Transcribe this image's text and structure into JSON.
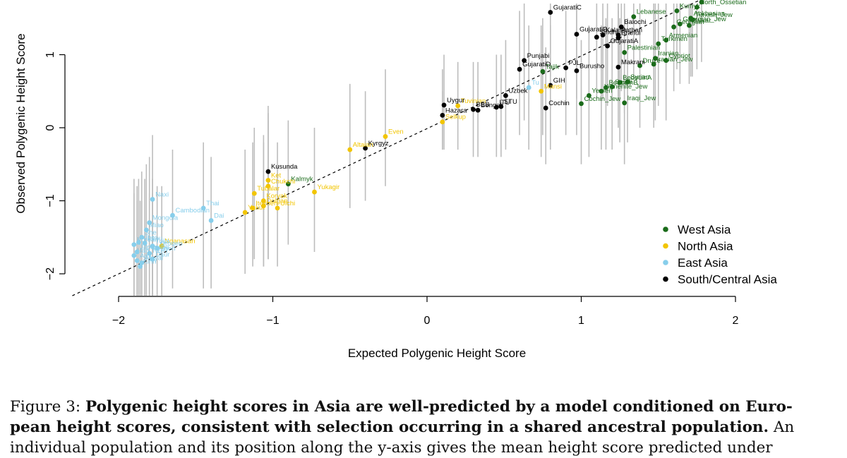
{
  "chart_data": {
    "type": "scatter",
    "xlabel": "Expected Polygenic Height Score",
    "ylabel": "Observed Polygenic Height Score",
    "xlim": [
      -2.2,
      2
    ],
    "ylim": [
      -2.3,
      1.75
    ],
    "x_ticks": [
      -2,
      -1,
      0,
      1,
      2
    ],
    "x_tick_labels": [
      "−2",
      "−1",
      "0",
      "1",
      "2"
    ],
    "y_ticks": [
      -2,
      -1,
      0,
      1
    ],
    "y_tick_labels": [
      "−2",
      "−1",
      "0",
      "1"
    ],
    "reference_line": "y = x (dashed)",
    "grid": false,
    "legend_position": "bottom-right",
    "colors": {
      "West Asia": "#1a6b1a",
      "North Asia": "#f2c500",
      "East Asia": "#87ceeb",
      "South/Central Asia": "#000000"
    },
    "legend": [
      "West Asia",
      "North Asia",
      "East Asia",
      "South/Central Asia"
    ],
    "points": [
      {
        "label": "Kalmyk",
        "group": "West Asia",
        "x": -0.9,
        "y": -0.77,
        "lo": -1.6,
        "hi": 0.1
      },
      {
        "label": "Cochin_Jew",
        "group": "West Asia",
        "x": 1.0,
        "y": 0.33,
        "lo": -0.5,
        "hi": 1.2
      },
      {
        "label": "Yemen",
        "group": "West Asia",
        "x": 1.05,
        "y": 0.44,
        "lo": -0.4,
        "hi": 1.4
      },
      {
        "label": "Yemenite_Jew",
        "group": "West Asia",
        "x": 1.13,
        "y": 0.5,
        "lo": -0.3,
        "hi": 1.4
      },
      {
        "label": "BedouinB",
        "group": "West Asia",
        "x": 1.16,
        "y": 0.55,
        "lo": -0.3,
        "hi": 1.5
      },
      {
        "label": "Saudi",
        "group": "West Asia",
        "x": 1.2,
        "y": 0.56,
        "lo": -0.3,
        "hi": 1.5
      },
      {
        "label": "BedouinA",
        "group": "West Asia",
        "x": 1.25,
        "y": 0.62,
        "lo": -0.2,
        "hi": 1.5
      },
      {
        "label": "Syrian",
        "group": "West Asia",
        "x": 1.3,
        "y": 0.63,
        "lo": -0.2,
        "hi": 1.5
      },
      {
        "label": "Iraqi_Jew",
        "group": "West Asia",
        "x": 1.28,
        "y": 0.34,
        "lo": -0.5,
        "hi": 1.3
      },
      {
        "label": "Druze",
        "group": "West Asia",
        "x": 1.38,
        "y": 0.85,
        "lo": 0.0,
        "hi": 1.7
      },
      {
        "label": "Iranian_Jew",
        "group": "West Asia",
        "x": 1.47,
        "y": 0.87,
        "lo": 0.0,
        "hi": 1.7
      },
      {
        "label": "Iranian",
        "group": "West Asia",
        "x": 1.48,
        "y": 0.95,
        "lo": 0.1,
        "hi": 1.7
      },
      {
        "label": "Cypriot",
        "group": "West Asia",
        "x": 1.55,
        "y": 0.92,
        "lo": 0.1,
        "hi": 1.7
      },
      {
        "label": "Palestinian",
        "group": "West Asia",
        "x": 1.28,
        "y": 1.03,
        "lo": 0.2,
        "hi": 1.7
      },
      {
        "label": "Turkmen",
        "group": "West Asia",
        "x": 1.5,
        "y": 1.15,
        "lo": 0.3,
        "hi": 1.7
      },
      {
        "label": "Armenian",
        "group": "West Asia",
        "x": 1.55,
        "y": 1.2,
        "lo": 0.4,
        "hi": 1.7
      },
      {
        "label": "Georgian",
        "group": "West Asia",
        "x": 1.6,
        "y": 1.38,
        "lo": 0.5,
        "hi": 1.7
      },
      {
        "label": "Georgian_Jew",
        "group": "West Asia",
        "x": 1.64,
        "y": 1.42,
        "lo": 0.6,
        "hi": 1.7
      },
      {
        "label": "Balkar",
        "group": "West Asia",
        "x": 1.7,
        "y": 1.4,
        "lo": 0.6,
        "hi": 1.7
      },
      {
        "label": "Abkhasian",
        "group": "West Asia",
        "x": 1.71,
        "y": 1.5,
        "lo": 0.7,
        "hi": 1.7
      },
      {
        "label": "Turkish_Jew",
        "group": "West Asia",
        "x": 1.72,
        "y": 1.48,
        "lo": 0.7,
        "hi": 1.7
      },
      {
        "label": "Lebanese",
        "group": "West Asia",
        "x": 1.34,
        "y": 1.52,
        "lo": 0.7,
        "hi": 1.7
      },
      {
        "label": "Kumyk",
        "group": "West Asia",
        "x": 1.62,
        "y": 1.6,
        "lo": 0.8,
        "hi": 1.7
      },
      {
        "label": "North_Ossetian",
        "group": "West Asia",
        "x": 1.75,
        "y": 1.65,
        "lo": 0.8,
        "hi": 1.7
      },
      {
        "label": "Chechen",
        "group": "West Asia",
        "x": 1.78,
        "y": 1.72,
        "lo": 0.9,
        "hi": 1.7
      },
      {
        "label": "Tajik",
        "group": "West Asia",
        "x": 0.75,
        "y": 0.77,
        "lo": -0.1,
        "hi": 1.5
      },
      {
        "label": "Ket",
        "group": "North Asia",
        "x": -1.03,
        "y": -0.72,
        "lo": -1.8,
        "hi": 0.2
      },
      {
        "label": "Chukchi",
        "group": "North Asia",
        "x": -1.03,
        "y": -0.8,
        "lo": -1.8,
        "hi": 0.1
      },
      {
        "label": "Tubalar",
        "group": "North Asia",
        "x": -1.12,
        "y": -0.9,
        "lo": -1.8,
        "hi": 0.0
      },
      {
        "label": "Koryak",
        "group": "North Asia",
        "x": -1.06,
        "y": -1.0,
        "lo": -1.9,
        "hi": -0.1
      },
      {
        "label": "Dolgan",
        "group": "North Asia",
        "x": -1.06,
        "y": -1.07,
        "lo": -1.9,
        "hi": -0.2
      },
      {
        "label": "Itelmen",
        "group": "North Asia",
        "x": -1.13,
        "y": -1.1,
        "lo": -1.9,
        "hi": -0.2
      },
      {
        "label": "Ulchi",
        "group": "North Asia",
        "x": -0.97,
        "y": -1.1,
        "lo": -1.9,
        "hi": -0.2
      },
      {
        "label": "Yakut",
        "group": "North Asia",
        "x": -1.18,
        "y": -1.16,
        "lo": -2.0,
        "hi": -0.3
      },
      {
        "label": "Yukagir",
        "group": "North Asia",
        "x": -0.73,
        "y": -0.88,
        "lo": -1.7,
        "hi": 0.0
      },
      {
        "label": "Nganasan",
        "group": "North Asia",
        "x": -1.72,
        "y": -1.62,
        "lo": -2.3,
        "hi": -0.8
      },
      {
        "label": "Altaian",
        "group": "North Asia",
        "x": -0.5,
        "y": -0.3,
        "lo": -1.1,
        "hi": 0.6
      },
      {
        "label": "Even",
        "group": "North Asia",
        "x": -0.27,
        "y": -0.12,
        "lo": -0.8,
        "hi": 0.8
      },
      {
        "label": "Mansi",
        "group": "North Asia",
        "x": 0.74,
        "y": 0.5,
        "lo": -0.4,
        "hi": 1.4
      },
      {
        "label": "Selkup",
        "group": "North Asia",
        "x": 0.1,
        "y": 0.08,
        "lo": -0.3,
        "hi": 0.5
      },
      {
        "label": "Tuvinian",
        "group": "North Asia",
        "x": 0.2,
        "y": 0.3,
        "lo": -0.3,
        "hi": 0.9
      },
      {
        "label": "Naxi",
        "group": "East Asia",
        "x": -1.78,
        "y": -0.98,
        "lo": -2.2,
        "hi": -0.1
      },
      {
        "label": "Cambodian",
        "group": "East Asia",
        "x": -1.65,
        "y": -1.2,
        "lo": -2.2,
        "hi": -0.3
      },
      {
        "label": "Thai",
        "group": "East Asia",
        "x": -1.45,
        "y": -1.1,
        "lo": -2.2,
        "hi": -0.2
      },
      {
        "label": "Dai",
        "group": "East Asia",
        "x": -1.4,
        "y": -1.27,
        "lo": -2.2,
        "hi": -0.4
      },
      {
        "label": "Mongola",
        "group": "East Asia",
        "x": -1.8,
        "y": -1.3,
        "lo": -2.3,
        "hi": -0.4
      },
      {
        "label": "Miao",
        "group": "East Asia",
        "x": -1.82,
        "y": -1.4,
        "lo": -2.3,
        "hi": -0.5
      },
      {
        "label": "She",
        "group": "East Asia",
        "x": -1.85,
        "y": -1.5,
        "lo": -2.3,
        "hi": -0.6
      },
      {
        "label": "Xibo",
        "group": "East Asia",
        "x": -1.87,
        "y": -1.57,
        "lo": -2.3,
        "hi": -0.7
      },
      {
        "label": "Korean",
        "group": "East Asia",
        "x": -1.9,
        "y": -1.6,
        "lo": -2.3,
        "hi": -0.7
      },
      {
        "label": "Lahu",
        "group": "East Asia",
        "x": -1.83,
        "y": -1.58,
        "lo": -2.3,
        "hi": -0.7
      },
      {
        "label": "Tujia",
        "group": "East Asia",
        "x": -1.78,
        "y": -1.62,
        "lo": -2.3,
        "hi": -0.7
      },
      {
        "label": "Japanese",
        "group": "East Asia",
        "x": -1.88,
        "y": -1.7,
        "lo": -2.3,
        "hi": -0.8
      },
      {
        "label": "Han_NGH",
        "group": "East Asia",
        "x": -1.9,
        "y": -1.75,
        "lo": -2.3,
        "hi": -0.9
      },
      {
        "label": "Oroqen",
        "group": "East Asia",
        "x": -1.75,
        "y": -1.65,
        "lo": -2.3,
        "hi": -0.8
      },
      {
        "label": "Hezhen",
        "group": "East Asia",
        "x": -1.8,
        "y": -1.72,
        "lo": -2.3,
        "hi": -0.9
      },
      {
        "label": "Daur",
        "group": "East Asia",
        "x": -1.78,
        "y": -1.8,
        "lo": -2.3,
        "hi": -0.9
      },
      {
        "label": "Tu",
        "group": "East Asia",
        "x": 0.66,
        "y": 0.55,
        "lo": -0.3,
        "hi": 1.4
      },
      {
        "label": "Ami",
        "group": "East Asia",
        "x": -1.88,
        "y": -1.82,
        "lo": -2.3,
        "hi": -1.0
      },
      {
        "label": "Atayal",
        "group": "East Asia",
        "x": -1.85,
        "y": -1.85,
        "lo": -2.3,
        "hi": -1.0
      },
      {
        "label": "Kinh",
        "group": "East Asia",
        "x": -1.86,
        "y": -1.9,
        "lo": -2.3,
        "hi": -1.0
      },
      {
        "label": "GujaratiC",
        "group": "South/Central Asia",
        "x": 0.8,
        "y": 1.58,
        "lo": 0.7,
        "hi": 1.7
      },
      {
        "label": "Balochi",
        "group": "South/Central Asia",
        "x": 1.26,
        "y": 1.38,
        "lo": 0.5,
        "hi": 1.7
      },
      {
        "label": "GujaratiB",
        "group": "South/Central Asia",
        "x": 0.97,
        "y": 1.28,
        "lo": 0.4,
        "hi": 1.7
      },
      {
        "label": "Sindhi",
        "group": "South/Central Asia",
        "x": 1.1,
        "y": 1.24,
        "lo": 0.4,
        "hi": 1.7
      },
      {
        "label": "Kalash",
        "group": "South/Central Asia",
        "x": 1.14,
        "y": 1.27,
        "lo": 0.4,
        "hi": 1.7
      },
      {
        "label": "Pathan",
        "group": "South/Central Asia",
        "x": 1.24,
        "y": 1.27,
        "lo": 0.4,
        "hi": 1.7
      },
      {
        "label": "Brahui",
        "group": "South/Central Asia",
        "x": 1.24,
        "y": 1.23,
        "lo": 0.4,
        "hi": 1.7
      },
      {
        "label": "GujaratiA",
        "group": "South/Central Asia",
        "x": 1.17,
        "y": 1.12,
        "lo": 0.3,
        "hi": 1.7
      },
      {
        "label": "Punjabi",
        "group": "South/Central Asia",
        "x": 0.63,
        "y": 0.92,
        "lo": 0.1,
        "hi": 1.7
      },
      {
        "label": "GujaratiD",
        "group": "South/Central Asia",
        "x": 0.6,
        "y": 0.8,
        "lo": -0.1,
        "hi": 1.6
      },
      {
        "label": "PJL",
        "group": "South/Central Asia",
        "x": 0.9,
        "y": 0.82,
        "lo": -0.1,
        "hi": 1.6
      },
      {
        "label": "Burusho",
        "group": "South/Central Asia",
        "x": 0.97,
        "y": 0.78,
        "lo": -0.1,
        "hi": 1.6
      },
      {
        "label": "Makrani",
        "group": "South/Central Asia",
        "x": 1.24,
        "y": 0.83,
        "lo": 0.0,
        "hi": 1.6
      },
      {
        "label": "GIH",
        "group": "South/Central Asia",
        "x": 0.8,
        "y": 0.58,
        "lo": -0.3,
        "hi": 1.4
      },
      {
        "label": "Uzbek",
        "group": "South/Central Asia",
        "x": 0.51,
        "y": 0.44,
        "lo": -0.3,
        "hi": 1.2
      },
      {
        "label": "Uygur",
        "group": "South/Central Asia",
        "x": 0.11,
        "y": 0.31,
        "lo": -0.3,
        "hi": 1.0
      },
      {
        "label": "BEB",
        "group": "South/Central Asia",
        "x": 0.3,
        "y": 0.25,
        "lo": -0.4,
        "hi": 0.9
      },
      {
        "label": "ITU",
        "group": "South/Central Asia",
        "x": 0.45,
        "y": 0.28,
        "lo": -0.4,
        "hi": 1.0
      },
      {
        "label": "STU",
        "group": "South/Central Asia",
        "x": 0.48,
        "y": 0.29,
        "lo": -0.4,
        "hi": 1.0
      },
      {
        "label": "Hazara",
        "group": "South/Central Asia",
        "x": 0.1,
        "y": 0.17,
        "lo": -0.3,
        "hi": 0.8
      },
      {
        "label": "Bengali",
        "group": "South/Central Asia",
        "x": 0.33,
        "y": 0.24,
        "lo": -0.4,
        "hi": 0.9
      },
      {
        "label": "Cochin",
        "group": "South/Central Asia",
        "x": 0.77,
        "y": 0.27,
        "lo": -0.5,
        "hi": 1.1
      },
      {
        "label": "Kyrgyz",
        "group": "South/Central Asia",
        "x": -0.4,
        "y": -0.28,
        "lo": -1.0,
        "hi": 0.5
      },
      {
        "label": "Kusunda",
        "group": "South/Central Asia",
        "x": -1.03,
        "y": -0.6,
        "lo": -1.6,
        "hi": 0.3
      }
    ]
  },
  "caption": {
    "lead": "Figure 3: ",
    "bold": "Polygenic height scores in Asia are well-predicted by a model conditioned on European height scores, consistent with selection occurring in a shared ancestral population.",
    "line1_a": "Figure 3: ",
    "line1_b": "Polygenic height scores in Asia are well-predicted by a model conditioned on Euro-",
    "line2_b": "pean height scores, consistent with selection occurring in a shared ancestral population.",
    "line2_c": " An",
    "line3": "individual population and its position along the y-axis gives the mean height score predicted under"
  }
}
